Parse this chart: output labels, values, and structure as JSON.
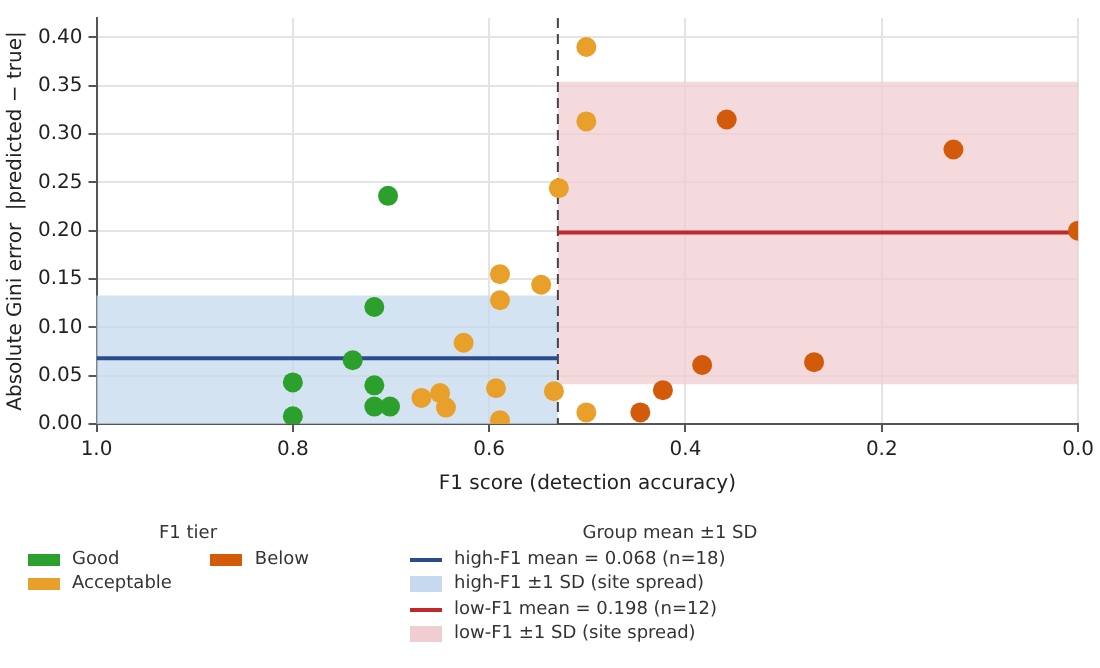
{
  "chart_data": {
    "type": "scatter",
    "xlabel": "F1 score (detection accuracy)",
    "ylabel": "Absolute Gini error  |predicted − true|",
    "xlim": [
      1.0,
      0.0
    ],
    "xticks": [
      {
        "value": 1.0,
        "label": "1.0"
      },
      {
        "value": 0.8,
        "label": "0.8"
      },
      {
        "value": 0.6,
        "label": "0.6"
      },
      {
        "value": 0.4,
        "label": "0.4"
      },
      {
        "value": 0.2,
        "label": "0.2"
      },
      {
        "value": 0.0,
        "label": "0.0"
      }
    ],
    "ylim": [
      0,
      0.42
    ],
    "yticks": [
      {
        "value": 0,
        "label": "0.00"
      },
      {
        "value": 0.05,
        "label": "0.05"
      },
      {
        "value": 0.1,
        "label": "0.10"
      },
      {
        "value": 0.15,
        "label": "0.15"
      },
      {
        "value": 0.2,
        "label": "0.20"
      },
      {
        "value": 0.25,
        "label": "0.25"
      },
      {
        "value": 0.3,
        "label": "0.30"
      },
      {
        "value": 0.35,
        "label": "0.35"
      },
      {
        "value": 0.4,
        "label": "0.40"
      }
    ],
    "grid": true,
    "legend": "bottom",
    "legend_title": "F1 tier",
    "annotations": [
      "Group mean ±1 SD"
    ],
    "series": [
      {
        "name": "Good",
        "marker": "circle",
        "color": "#2ca02c",
        "x": [
          0.703,
          0.717,
          0.739,
          0.8,
          0.8,
          0.717,
          0.717,
          0.701
        ],
        "values": [
          0.236,
          0.121,
          0.066,
          0.043,
          0.008,
          0.04,
          0.018,
          0.018
        ]
      },
      {
        "name": "Acceptable",
        "marker": "circle",
        "color": "#e8a02a",
        "x": [
          0.669,
          0.65,
          0.644,
          0.626,
          0.589,
          0.589,
          0.593,
          0.589,
          0.547,
          0.534,
          0.529,
          0.501,
          0.501,
          0.501
        ],
        "values": [
          0.027,
          0.032,
          0.017,
          0.084,
          0.155,
          0.128,
          0.037,
          0.004,
          0.144,
          0.034,
          0.244,
          0.39,
          0.313,
          0.012
        ]
      },
      {
        "name": "Below",
        "marker": "circle",
        "color": "#d35a0a",
        "x": [
          0.358,
          0.127,
          0.0,
          0.383,
          0.269,
          0.423,
          0.446
        ],
        "values": [
          0.315,
          0.284,
          0.2,
          0.061,
          0.064,
          0.035,
          0.012
        ]
      },
      {
        "name": "high-F1 mean = 0.068  (n=18)",
        "type": "line",
        "color": "#2b4c8c",
        "x": [
          1.0,
          0.53
        ],
        "values": [
          0.068,
          0.068
        ]
      },
      {
        "name": "low-F1 mean = 0.198  (n=12)",
        "type": "line",
        "color": "#c0282d",
        "x": [
          0.53,
          0.0
        ],
        "values": [
          0.198,
          0.198
        ]
      }
    ],
    "bands": [
      {
        "axis": "y",
        "from": 0,
        "to": 0.133,
        "label": "high-F1 ±1 SD (site spread)",
        "color": "#c6d9ee"
      },
      {
        "axis": "y",
        "from": 0.041,
        "to": 0.354,
        "label": "low-F1 ±1 SD (site spread)",
        "color": "#f0cdd0"
      }
    ],
    "ref_lines": [
      {
        "axis": "x",
        "value": 0.53,
        "color": "#444444",
        "line_style": "dashed"
      }
    ]
  }
}
